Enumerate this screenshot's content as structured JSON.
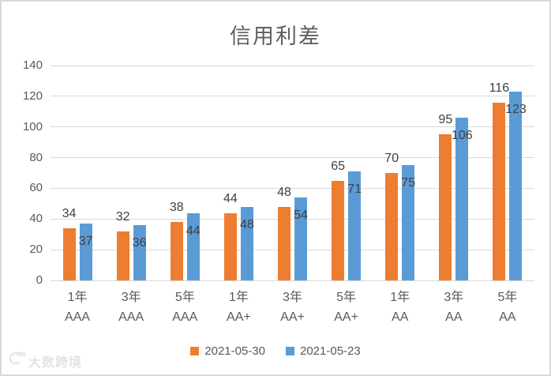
{
  "title": "信用利差",
  "watermark": {
    "text": "大数跨境"
  },
  "chart_data": {
    "type": "bar",
    "title": "信用利差",
    "xlabel": "",
    "ylabel": "",
    "ylim": [
      0,
      140
    ],
    "yticks": [
      0,
      20,
      40,
      60,
      80,
      100,
      120,
      140
    ],
    "grid": true,
    "legend_position": "bottom",
    "data_labels": true,
    "categories": [
      {
        "tenor": "1年",
        "rating": "AAA"
      },
      {
        "tenor": "3年",
        "rating": "AAA"
      },
      {
        "tenor": "5年",
        "rating": "AAA"
      },
      {
        "tenor": "1年",
        "rating": "AA+"
      },
      {
        "tenor": "3年",
        "rating": "AA+"
      },
      {
        "tenor": "5年",
        "rating": "AA+"
      },
      {
        "tenor": "1年",
        "rating": "AA"
      },
      {
        "tenor": "3年",
        "rating": "AA"
      },
      {
        "tenor": "5年",
        "rating": "AA"
      }
    ],
    "series": [
      {
        "name": "2021-05-30",
        "color": "#ED7D31",
        "values": [
          34,
          32,
          38,
          44,
          48,
          65,
          70,
          95,
          116
        ]
      },
      {
        "name": "2021-05-23",
        "color": "#5B9BD5",
        "values": [
          37,
          36,
          44,
          48,
          54,
          71,
          75,
          106,
          123
        ]
      }
    ]
  }
}
